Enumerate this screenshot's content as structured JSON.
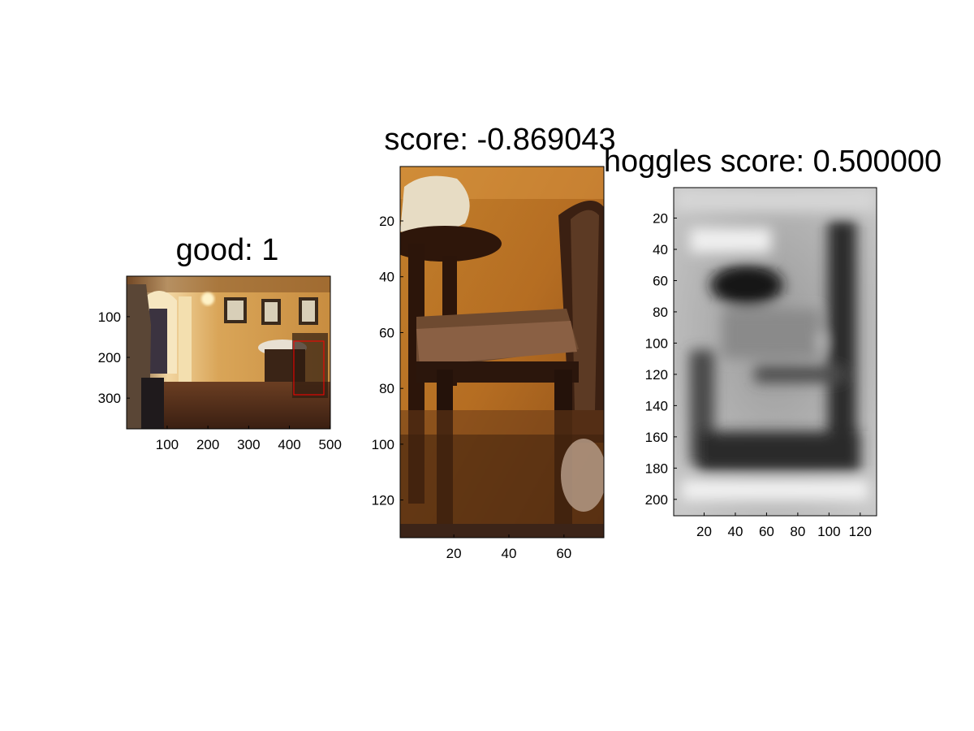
{
  "panels": [
    {
      "title": "good: 1",
      "image_content": "room-photo",
      "xticks": [
        100,
        200,
        300,
        400,
        500
      ],
      "yticks": [
        100,
        200,
        300
      ],
      "xlim": [
        0.5,
        500.5
      ],
      "ylim": [
        0.5,
        375.5
      ],
      "box": {
        "x": [
          410,
          490
        ],
        "y": [
          160,
          295
        ],
        "color": "#ff0000"
      }
    },
    {
      "title": "score: -0.869043",
      "image_content": "chair-crop",
      "xticks": [
        20,
        40,
        60
      ],
      "yticks": [
        20,
        40,
        60,
        80,
        100,
        120
      ],
      "xlim": [
        0.5,
        74.5
      ],
      "ylim": [
        0.5,
        133.5
      ]
    },
    {
      "title": "hoggles score: 0.500000",
      "image_content": "hoggles-grayscale",
      "xticks": [
        20,
        40,
        60,
        80,
        100,
        120
      ],
      "yticks": [
        20,
        40,
        60,
        80,
        100,
        120,
        140,
        160,
        180,
        200
      ],
      "xlim": [
        0.5,
        130.5
      ],
      "ylim": [
        0.5,
        210.5
      ]
    }
  ],
  "chart_data": [
    {
      "type": "heatmap",
      "title": "good: 1",
      "xlim": [
        0.5,
        500.5
      ],
      "ylim": [
        0.5,
        375.5
      ],
      "xticks": [
        100,
        200,
        300,
        400,
        500
      ],
      "yticks": [
        100,
        200,
        300
      ]
    },
    {
      "type": "heatmap",
      "title": "score: -0.869043",
      "xlim": [
        0.5,
        74.5
      ],
      "ylim": [
        0.5,
        133.5
      ],
      "xticks": [
        20,
        40,
        60
      ],
      "yticks": [
        20,
        40,
        60,
        80,
        100,
        120
      ]
    },
    {
      "type": "heatmap",
      "title": "hoggles score: 0.500000",
      "xlim": [
        0.5,
        130.5
      ],
      "ylim": [
        0.5,
        210.5
      ],
      "xticks": [
        20,
        40,
        60,
        80,
        100,
        120
      ],
      "yticks": [
        20,
        40,
        60,
        80,
        100,
        120,
        140,
        160,
        180,
        200
      ]
    }
  ]
}
